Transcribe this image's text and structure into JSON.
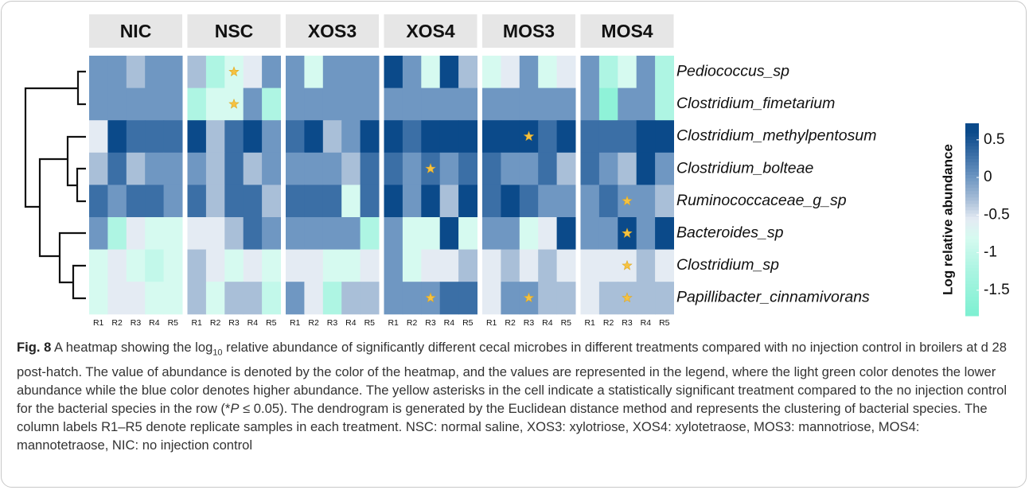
{
  "chart_data": {
    "type": "heatmap",
    "groups": [
      "NIC",
      "NSC",
      "XOS3",
      "XOS4",
      "MOS3",
      "MOS4"
    ],
    "replicates": [
      "R1",
      "R2",
      "R3",
      "R4",
      "R5"
    ],
    "rows": [
      "Pediococcus_sp",
      "Clostridium_fimetarium",
      "Clostridium_methylpentosum",
      "Clostridium_bolteae",
      "Ruminococcaceae_g_sp",
      "Bacteroides_sp",
      "Clostridium_sp",
      "Papillibacter_cinnamivorans"
    ],
    "values": [
      [
        0,
        0,
        -0.3,
        0,
        0,
        -0.3,
        -1.2,
        -0.8,
        -0.55,
        0,
        0,
        -0.8,
        0,
        0,
        0,
        0.6,
        0,
        -0.8,
        0.6,
        -0.3,
        -0.8,
        -0.55,
        0,
        -0.8,
        -0.55,
        0,
        -1.2,
        -0.8,
        0,
        -1.2
      ],
      [
        0,
        0,
        0,
        0,
        0,
        -1.2,
        -0.8,
        -0.8,
        0,
        -1.2,
        0,
        0,
        0,
        0,
        0,
        0,
        0,
        0,
        0,
        0,
        0,
        0,
        0,
        0,
        0,
        0,
        -1.6,
        0,
        0,
        -1.2
      ],
      [
        -0.55,
        0.6,
        0.3,
        0.3,
        0.3,
        0.6,
        -0.3,
        0.3,
        0.6,
        0,
        0.3,
        0.6,
        -0.3,
        0,
        0.6,
        0.6,
        0.3,
        0.6,
        0.6,
        0.6,
        0.6,
        0.6,
        0.6,
        0.3,
        0.6,
        0.3,
        0.3,
        0.3,
        0.6,
        0.6
      ],
      [
        -0.3,
        0.3,
        -0.3,
        0,
        0,
        0,
        -0.3,
        0.3,
        -0.3,
        0,
        0,
        0,
        0,
        -0.3,
        0.3,
        0.3,
        0,
        0.3,
        0,
        0.3,
        0.3,
        0,
        0,
        0.3,
        -0.3,
        0.3,
        0,
        -0.3,
        0.6,
        0
      ],
      [
        0.3,
        0,
        0.3,
        0.3,
        0,
        0.3,
        -0.3,
        0.3,
        0.3,
        -0.3,
        0.3,
        0.3,
        0.3,
        -0.8,
        0.3,
        0.6,
        0,
        0.6,
        -0.3,
        0.6,
        0.3,
        0.6,
        0.3,
        0,
        0,
        0,
        0.3,
        0,
        0,
        -0.3
      ],
      [
        0,
        -1.2,
        -0.55,
        -0.8,
        -0.8,
        -0.55,
        -0.55,
        -0.3,
        0.3,
        0,
        0,
        0,
        0,
        0,
        -1.2,
        0,
        -0.8,
        -0.8,
        0.6,
        -0.8,
        0,
        0,
        -0.8,
        -0.55,
        0.6,
        0,
        0,
        0.6,
        0,
        0.6
      ],
      [
        -0.8,
        -0.55,
        -0.8,
        -1.0,
        -0.8,
        -0.3,
        -0.55,
        -0.8,
        -0.55,
        -0.8,
        -0.55,
        -0.55,
        -0.8,
        -0.8,
        -0.55,
        0,
        -0.8,
        -0.55,
        -0.55,
        -0.3,
        -0.55,
        -0.3,
        -0.55,
        -0.3,
        -0.55,
        -0.55,
        -0.55,
        -0.55,
        -0.3,
        -0.55
      ],
      [
        -0.8,
        -0.55,
        -0.55,
        -0.8,
        -0.8,
        -0.3,
        -0.8,
        -0.3,
        -0.3,
        -1.0,
        0,
        -0.55,
        -1.2,
        -0.3,
        -0.3,
        0,
        0,
        0,
        0.3,
        0.3,
        -0.55,
        0,
        0,
        -0.3,
        -0.3,
        -0.55,
        -0.3,
        -0.3,
        -0.3,
        -0.3
      ]
    ],
    "significant": [
      [
        7
      ],
      [
        7
      ],
      [
        22
      ],
      [
        17
      ],
      [
        27
      ],
      [
        27
      ],
      [
        27
      ],
      [
        17,
        22,
        27
      ]
    ],
    "colorscale": [
      [
        -1.8,
        "#7ff0d2"
      ],
      [
        -1.2,
        "#aef5e3"
      ],
      [
        -0.8,
        "#d6faf0"
      ],
      [
        -0.55,
        "#e4ebf3"
      ],
      [
        -0.3,
        "#a9bfd8"
      ],
      [
        0,
        "#6f97c2"
      ],
      [
        0.3,
        "#3b6fa6"
      ],
      [
        0.6,
        "#0b4a8a"
      ]
    ],
    "clim": [
      -1.84,
      0.72
    ],
    "cticks": [
      0.5,
      0,
      -0.5,
      -1,
      -1.5
    ],
    "colorbar_label": "Log relative abundance"
  },
  "caption": {
    "label": "Fig. 8",
    "text1": " A heatmap showing the log",
    "sub": "10",
    "text2": " relative abundance of significantly different cecal microbes in different treatments compared with no injection control in broilers at d 28 post-hatch. The value of abundance is denoted by the color of the heatmap, and the values are represented in the legend, where the light green color denotes the lower abundance while the blue color denotes higher abundance. The yellow asterisks in the cell indicate a statistically significant treatment compared to the no injection control for the bacterial species in the row (*",
    "italic": "P",
    "text3": " ≤ 0.05). The dendrogram is generated by the Euclidean distance method and represents the clustering of bacterial species. The column labels R1–R5 denote replicate samples in each treatment. NSC: normal saline, XOS3: xylotriose, XOS4: xylotetraose, MOS3: mannotriose, MOS4: mannotetraose, NIC: no injection control"
  }
}
